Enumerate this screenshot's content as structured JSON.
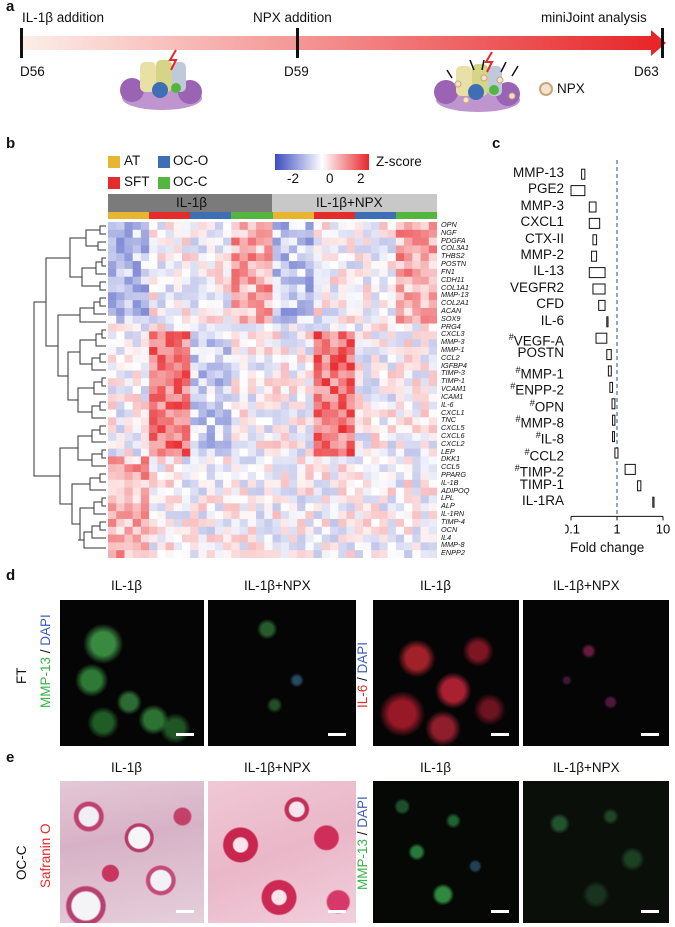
{
  "panel_a": {
    "letter": "a",
    "events": [
      {
        "label": "IL-1β addition",
        "day": "D56"
      },
      {
        "label": "NPX addition",
        "day": "D59"
      },
      {
        "label": "miniJoint analysis",
        "day": "D63"
      }
    ],
    "legend_npx": "NPX",
    "colors": {
      "arrow_start": "#fde6dc",
      "arrow_end": "#e8262a",
      "bolt": "#e8262a"
    }
  },
  "panel_b": {
    "letter": "b",
    "legend": [
      {
        "label": "AT",
        "color": "#e8b531"
      },
      {
        "label": "OC-O",
        "color": "#3e6fb5"
      },
      {
        "label": "SFT",
        "color": "#e62b2b"
      },
      {
        "label": "OC-C",
        "color": "#54b53f"
      }
    ],
    "zscore_title": "Z-score",
    "zscore_ticks": [
      "-2",
      "0",
      "2"
    ],
    "groups": [
      "IL-1β",
      "IL-1β+NPX"
    ],
    "genes": [
      "OPN",
      "NGF",
      "PDGFA",
      "COL3A1",
      "THBS2",
      "POSTN",
      "FN1",
      "CDH11",
      "COL1A1",
      "MMP-13",
      "COL2A1",
      "ACAN",
      "SOX9",
      "PRG4",
      "CXCL3",
      "MMP-3",
      "MMP-1",
      "CCL2",
      "IGFBP4",
      "TIMP-3",
      "TIMP-1",
      "VCAM1",
      "ICAM1",
      "IL-6",
      "CXCL1",
      "TNC",
      "CXCL5",
      "CXCL6",
      "CXCL2",
      "LEP",
      "DKK1",
      "CCL5",
      "PPARG",
      "IL-1B",
      "ADIPOQ",
      "LPL",
      "ALP",
      "IL-1RN",
      "TIMP-4",
      "OCN",
      "IL4",
      "MMP-8",
      "ENPP2"
    ]
  },
  "panel_c": {
    "letter": "c",
    "xlabel": "Fold change",
    "xticks": [
      "0.1",
      "1",
      "10"
    ],
    "reference_line": 1,
    "chart_data": {
      "type": "box",
      "xscale": "log",
      "xlim": [
        0.1,
        10
      ],
      "xlabel": "Fold change",
      "categories": [
        {
          "marker": "",
          "name": "MMP-13",
          "low": 0.17,
          "high": 0.2
        },
        {
          "marker": "",
          "name": "PGE2",
          "low": 0.1,
          "high": 0.2
        },
        {
          "marker": "",
          "name": "MMP-3",
          "low": 0.25,
          "high": 0.35
        },
        {
          "marker": "",
          "name": "CXCL1",
          "low": 0.25,
          "high": 0.42
        },
        {
          "marker": "",
          "name": "CTX-II",
          "low": 0.3,
          "high": 0.36
        },
        {
          "marker": "",
          "name": "MMP-2",
          "low": 0.28,
          "high": 0.36
        },
        {
          "marker": "",
          "name": "IL-13",
          "low": 0.25,
          "high": 0.55
        },
        {
          "marker": "",
          "name": "VEGFR2",
          "low": 0.3,
          "high": 0.55
        },
        {
          "marker": "",
          "name": "CFD",
          "low": 0.4,
          "high": 0.55
        },
        {
          "marker": "",
          "name": "IL-6",
          "low": 0.6,
          "high": 0.62
        },
        {
          "marker": "#",
          "name": "VEGF-A",
          "low": 0.35,
          "high": 0.6
        },
        {
          "marker": "",
          "name": "POSTN",
          "low": 0.6,
          "high": 0.75
        },
        {
          "marker": "#",
          "name": "MMP-1",
          "low": 0.65,
          "high": 0.75
        },
        {
          "marker": "#",
          "name": "ENPP-2",
          "low": 0.7,
          "high": 0.8
        },
        {
          "marker": "#",
          "name": "OPN",
          "low": 0.78,
          "high": 0.9
        },
        {
          "marker": "#",
          "name": "MMP-8",
          "low": 0.8,
          "high": 0.9
        },
        {
          "marker": "#",
          "name": "IL-8",
          "low": 0.8,
          "high": 0.88
        },
        {
          "marker": "#",
          "name": "CCL2",
          "low": 0.9,
          "high": 1.05
        },
        {
          "marker": "#",
          "name": "TIMP-2",
          "low": 1.5,
          "high": 2.5
        },
        {
          "marker": "",
          "name": "TIMP-1",
          "low": 2.8,
          "high": 3.3
        },
        {
          "marker": "",
          "name": "IL-1RA",
          "low": 6.0,
          "high": 6.2
        }
      ]
    }
  },
  "panel_d": {
    "letter": "d",
    "row_label": "FT",
    "columns": [
      "IL-1β",
      "IL-1β+NPX",
      "IL-1β",
      "IL-1β+NPX"
    ],
    "stain_left": {
      "marker": "MMP-13",
      "sep": " / ",
      "dapi": "DAPI"
    },
    "stain_right": {
      "marker": "IL-6",
      "sep": " / ",
      "dapi": "DAPI"
    }
  },
  "panel_e": {
    "letter": "e",
    "row_label": "OC-C",
    "columns": [
      "IL-1β",
      "IL-1β+NPX",
      "IL-1β",
      "IL-1β+NPX"
    ],
    "stain_left": {
      "marker": "Safranin O"
    },
    "stain_right": {
      "marker": "MMP-13",
      "sep": " / ",
      "dapi": "DAPI"
    }
  }
}
